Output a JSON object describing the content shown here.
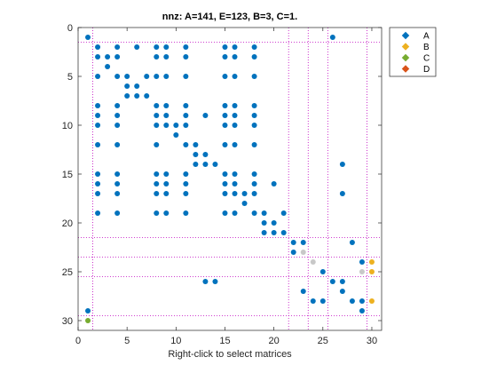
{
  "chart_data": {
    "type": "scatter",
    "title": "nnz: A=141, E=123, B=3, C=1.",
    "xlabel": "Right-click to select matrices",
    "ylabel": "",
    "xlim": [
      0,
      31
    ],
    "ylim": [
      0,
      31
    ],
    "y_reversed": true,
    "xticks": [
      0,
      5,
      10,
      15,
      20,
      25,
      30
    ],
    "yticks": [
      0,
      5,
      10,
      15,
      20,
      25,
      30
    ],
    "partition_lines": [
      1.5,
      21.5,
      23.5,
      25.5,
      29.5
    ],
    "legend_position": "top-right outside",
    "series": [
      {
        "name": "A",
        "color": "#0072BD",
        "points": [
          [
            1,
            1
          ],
          [
            26,
            1
          ],
          [
            2,
            2
          ],
          [
            4,
            2
          ],
          [
            6,
            2
          ],
          [
            8,
            2
          ],
          [
            9,
            2
          ],
          [
            11,
            2
          ],
          [
            15,
            2
          ],
          [
            16,
            2
          ],
          [
            18,
            2
          ],
          [
            2,
            3
          ],
          [
            3,
            3
          ],
          [
            4,
            3
          ],
          [
            8,
            3
          ],
          [
            9,
            3
          ],
          [
            11,
            3
          ],
          [
            15,
            3
          ],
          [
            16,
            3
          ],
          [
            18,
            3
          ],
          [
            3,
            4
          ],
          [
            2,
            5
          ],
          [
            4,
            5
          ],
          [
            5,
            5
          ],
          [
            7,
            5
          ],
          [
            8,
            5
          ],
          [
            9,
            5
          ],
          [
            11,
            5
          ],
          [
            15,
            5
          ],
          [
            16,
            5
          ],
          [
            18,
            5
          ],
          [
            5,
            6
          ],
          [
            6,
            6
          ],
          [
            5,
            7
          ],
          [
            6,
            7
          ],
          [
            7,
            7
          ],
          [
            2,
            8
          ],
          [
            4,
            8
          ],
          [
            8,
            8
          ],
          [
            9,
            8
          ],
          [
            11,
            8
          ],
          [
            15,
            8
          ],
          [
            16,
            8
          ],
          [
            18,
            8
          ],
          [
            2,
            9
          ],
          [
            4,
            9
          ],
          [
            8,
            9
          ],
          [
            9,
            9
          ],
          [
            11,
            9
          ],
          [
            13,
            9
          ],
          [
            15,
            9
          ],
          [
            16,
            9
          ],
          [
            18,
            9
          ],
          [
            2,
            10
          ],
          [
            4,
            10
          ],
          [
            8,
            10
          ],
          [
            9,
            10
          ],
          [
            10,
            10
          ],
          [
            11,
            10
          ],
          [
            15,
            10
          ],
          [
            16,
            10
          ],
          [
            18,
            10
          ],
          [
            10,
            11
          ],
          [
            2,
            12
          ],
          [
            4,
            12
          ],
          [
            8,
            12
          ],
          [
            11,
            12
          ],
          [
            12,
            12
          ],
          [
            15,
            12
          ],
          [
            16,
            12
          ],
          [
            18,
            12
          ],
          [
            12,
            13
          ],
          [
            13,
            13
          ],
          [
            12,
            14
          ],
          [
            13,
            14
          ],
          [
            14,
            14
          ],
          [
            27,
            14
          ],
          [
            2,
            15
          ],
          [
            4,
            15
          ],
          [
            8,
            15
          ],
          [
            9,
            15
          ],
          [
            11,
            15
          ],
          [
            15,
            15
          ],
          [
            16,
            15
          ],
          [
            18,
            15
          ],
          [
            2,
            16
          ],
          [
            4,
            16
          ],
          [
            8,
            16
          ],
          [
            9,
            16
          ],
          [
            11,
            16
          ],
          [
            15,
            16
          ],
          [
            16,
            16
          ],
          [
            18,
            16
          ],
          [
            20,
            16
          ],
          [
            2,
            17
          ],
          [
            4,
            17
          ],
          [
            8,
            17
          ],
          [
            9,
            17
          ],
          [
            11,
            17
          ],
          [
            15,
            17
          ],
          [
            16,
            17
          ],
          [
            17,
            17
          ],
          [
            18,
            17
          ],
          [
            27,
            17
          ],
          [
            17,
            18
          ],
          [
            2,
            19
          ],
          [
            4,
            19
          ],
          [
            8,
            19
          ],
          [
            9,
            19
          ],
          [
            11,
            19
          ],
          [
            15,
            19
          ],
          [
            16,
            19
          ],
          [
            18,
            19
          ],
          [
            19,
            19
          ],
          [
            21,
            19
          ],
          [
            19,
            20
          ],
          [
            20,
            20
          ],
          [
            19,
            21
          ],
          [
            20,
            21
          ],
          [
            21,
            21
          ],
          [
            22,
            22
          ],
          [
            23,
            22
          ],
          [
            28,
            22
          ],
          [
            22,
            23
          ],
          [
            25,
            25
          ],
          [
            29,
            24
          ],
          [
            13,
            26
          ],
          [
            14,
            26
          ],
          [
            26,
            26
          ],
          [
            27,
            26
          ],
          [
            23,
            27
          ],
          [
            27,
            27
          ],
          [
            24,
            28
          ],
          [
            25,
            28
          ],
          [
            28,
            28
          ],
          [
            29,
            28
          ],
          [
            29,
            29
          ],
          [
            1,
            29
          ]
        ]
      },
      {
        "name": "B",
        "color": "#EDB120",
        "points": [
          [
            30,
            24
          ],
          [
            30,
            25
          ],
          [
            30,
            28
          ]
        ]
      },
      {
        "name": "C",
        "color": "#77AC30",
        "points": [
          [
            1,
            30
          ]
        ]
      },
      {
        "name": "D",
        "color": "#D95319",
        "points": []
      },
      {
        "name": "",
        "color": "#C8C8C8",
        "points": [
          [
            23,
            23
          ],
          [
            24,
            24
          ],
          [
            29,
            25
          ]
        ]
      }
    ]
  }
}
